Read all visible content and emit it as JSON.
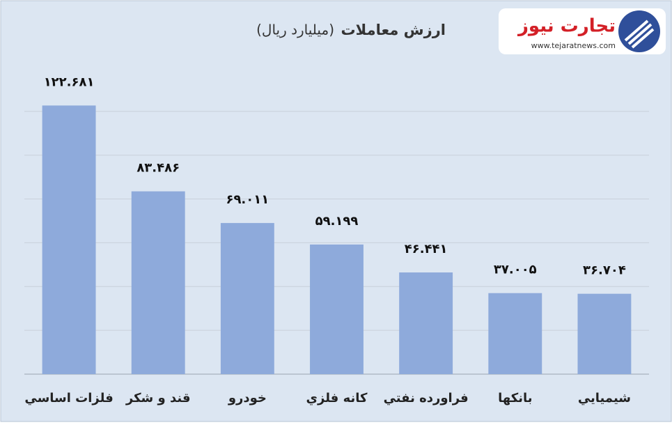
{
  "chart_data": {
    "type": "bar",
    "title": "ارزش معاملات",
    "title_unit": "(میلیارد ریال)",
    "categories": [
      "فلزات اساسي",
      "قند و شكر",
      "خودرو",
      "كانه فلزي",
      "فراورده نفتي",
      "بانكها",
      "شيميايي"
    ],
    "values": [
      122.681,
      83.486,
      69.011,
      59.199,
      46.441,
      37.005,
      36.704
    ],
    "value_labels": [
      "۱۲۲.۶۸۱",
      "۸۳.۴۸۶",
      "۶۹.۰۱۱",
      "۵۹.۱۹۹",
      "۴۶.۴۴۱",
      "۳۷.۰۰۵",
      "۳۶.۷۰۴"
    ],
    "color": "#8eaadb",
    "ylim": [
      0,
      140
    ],
    "yticks": [
      0,
      20,
      40,
      60,
      80,
      100,
      120
    ],
    "grid": true
  },
  "logo": {
    "name": "تجارت نیوز",
    "url": "www.tejaratnews.com"
  }
}
